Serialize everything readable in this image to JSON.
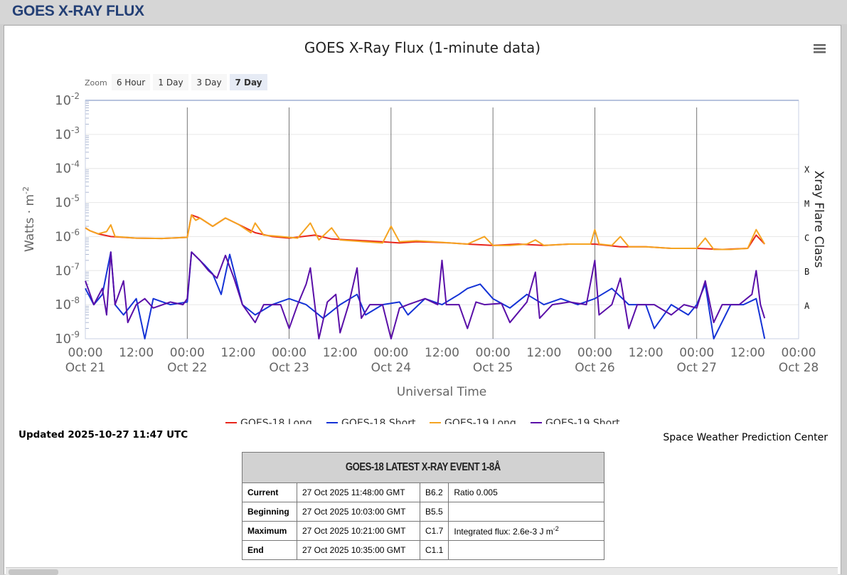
{
  "header": {
    "title": "GOES X-RAY FLUX"
  },
  "chart_data": {
    "type": "line",
    "title": "GOES X-Ray Flux (1-minute data)",
    "xlabel": "Universal Time",
    "ylabel": "Watts · m",
    "ylabel_sup": "-2",
    "right_axis_label": "Xray Flare Class",
    "y_scale": "log",
    "ylim": [
      1e-09,
      0.01
    ],
    "y_ticks": [
      {
        "base": "10",
        "exp": "-2"
      },
      {
        "base": "10",
        "exp": "-3"
      },
      {
        "base": "10",
        "exp": "-4"
      },
      {
        "base": "10",
        "exp": "-5"
      },
      {
        "base": "10",
        "exp": "-6"
      },
      {
        "base": "10",
        "exp": "-7"
      },
      {
        "base": "10",
        "exp": "-8"
      },
      {
        "base": "10",
        "exp": "-9"
      }
    ],
    "x_range_hours": [
      0,
      168
    ],
    "x_ticks": [
      {
        "time": "00:00",
        "date": "Oct 21"
      },
      {
        "time": "12:00",
        "date": ""
      },
      {
        "time": "00:00",
        "date": "Oct 22"
      },
      {
        "time": "12:00",
        "date": ""
      },
      {
        "time": "00:00",
        "date": "Oct 23"
      },
      {
        "time": "12:00",
        "date": ""
      },
      {
        "time": "00:00",
        "date": "Oct 24"
      },
      {
        "time": "12:00",
        "date": ""
      },
      {
        "time": "00:00",
        "date": "Oct 25"
      },
      {
        "time": "12:00",
        "date": ""
      },
      {
        "time": "00:00",
        "date": "Oct 26"
      },
      {
        "time": "12:00",
        "date": ""
      },
      {
        "time": "00:00",
        "date": "Oct 27"
      },
      {
        "time": "12:00",
        "date": ""
      },
      {
        "time": "00:00",
        "date": "Oct 28"
      }
    ],
    "flare_classes": [
      {
        "label": "X",
        "level": 0.0001
      },
      {
        "label": "M",
        "level": 1e-05
      },
      {
        "label": "C",
        "level": 1e-06
      },
      {
        "label": "B",
        "level": 1e-07
      },
      {
        "label": "A",
        "level": 1e-08
      }
    ],
    "zoom": {
      "label": "Zoom",
      "options": [
        "6 Hour",
        "1 Day",
        "3 Day",
        "7 Day"
      ],
      "selected": "7 Day"
    },
    "grid": true,
    "legend_position": "bottom",
    "series": [
      {
        "name": "GOES-18 Long",
        "color": "#e8261c",
        "points": [
          [
            0,
            1.8e-06
          ],
          [
            1,
            1.5e-06
          ],
          [
            3,
            1.2e-06
          ],
          [
            6,
            1e-06
          ],
          [
            12,
            9e-07
          ],
          [
            18,
            8.8e-07
          ],
          [
            24,
            9.5e-07
          ],
          [
            25,
            4.3e-06
          ],
          [
            27,
            3.5e-06
          ],
          [
            30,
            2e-06
          ],
          [
            33,
            3.5e-06
          ],
          [
            36,
            2.3e-06
          ],
          [
            40,
            1.3e-06
          ],
          [
            44,
            1e-06
          ],
          [
            48,
            9e-07
          ],
          [
            54,
            1.1e-06
          ],
          [
            58,
            8.5e-07
          ],
          [
            62,
            8e-07
          ],
          [
            66,
            7.5e-07
          ],
          [
            70,
            7e-07
          ],
          [
            74,
            6.5e-07
          ],
          [
            78,
            7e-07
          ],
          [
            82,
            6.8e-07
          ],
          [
            86,
            6.5e-07
          ],
          [
            90,
            6e-07
          ],
          [
            96,
            5.5e-07
          ],
          [
            102,
            6e-07
          ],
          [
            108,
            5.5e-07
          ],
          [
            114,
            6e-07
          ],
          [
            120,
            6e-07
          ],
          [
            126,
            5e-07
          ],
          [
            132,
            5e-07
          ],
          [
            138,
            4.5e-07
          ],
          [
            144,
            4.5e-07
          ],
          [
            150,
            4.2e-07
          ],
          [
            156,
            4.5e-07
          ],
          [
            158,
            1.1e-06
          ],
          [
            160,
            6e-07
          ]
        ]
      },
      {
        "name": "GOES-18 Short",
        "color": "#1433d6",
        "points": [
          [
            0,
            3e-08
          ],
          [
            2,
            1e-08
          ],
          [
            4,
            2e-08
          ],
          [
            6,
            3.5e-07
          ],
          [
            7,
            1e-08
          ],
          [
            9,
            5e-09
          ],
          [
            12,
            1.5e-08
          ],
          [
            14,
            1e-09
          ],
          [
            16,
            1.5e-08
          ],
          [
            20,
            1e-08
          ],
          [
            24,
            1.2e-08
          ],
          [
            25,
            3.5e-07
          ],
          [
            28,
            1.5e-07
          ],
          [
            30,
            8e-08
          ],
          [
            32,
            2e-08
          ],
          [
            34,
            3e-07
          ],
          [
            37,
            1e-08
          ],
          [
            40,
            5e-09
          ],
          [
            44,
            1e-08
          ],
          [
            48,
            1.5e-08
          ],
          [
            52,
            1e-08
          ],
          [
            56,
            4e-09
          ],
          [
            60,
            1e-08
          ],
          [
            64,
            2e-08
          ],
          [
            66,
            5e-09
          ],
          [
            70,
            1e-08
          ],
          [
            74,
            1.2e-08
          ],
          [
            76,
            5e-09
          ],
          [
            80,
            1.5e-08
          ],
          [
            84,
            1e-08
          ],
          [
            88,
            2e-08
          ],
          [
            90,
            3e-08
          ],
          [
            93,
            4e-08
          ],
          [
            96,
            1.5e-08
          ],
          [
            100,
            8e-09
          ],
          [
            104,
            2e-08
          ],
          [
            108,
            1e-08
          ],
          [
            112,
            1.5e-08
          ],
          [
            116,
            1e-08
          ],
          [
            120,
            1.5e-08
          ],
          [
            124,
            3e-08
          ],
          [
            128,
            1e-08
          ],
          [
            132,
            1e-08
          ],
          [
            134,
            2e-09
          ],
          [
            138,
            1e-08
          ],
          [
            142,
            5e-09
          ],
          [
            144,
            1e-08
          ],
          [
            146,
            4e-08
          ],
          [
            148,
            1e-09
          ],
          [
            152,
            1e-08
          ],
          [
            155,
            1e-08
          ],
          [
            158,
            1.5e-08
          ],
          [
            160,
            1e-09
          ]
        ]
      },
      {
        "name": "GOES-19 Long",
        "color": "#f5a422",
        "points": [
          [
            0,
            1.8e-06
          ],
          [
            1,
            1.5e-06
          ],
          [
            3,
            1.2e-06
          ],
          [
            5,
            1.4e-06
          ],
          [
            6,
            2.2e-06
          ],
          [
            7,
            1e-06
          ],
          [
            12,
            9e-07
          ],
          [
            18,
            8.8e-07
          ],
          [
            24,
            9.5e-07
          ],
          [
            25,
            4.3e-06
          ],
          [
            26,
            3e-06
          ],
          [
            27,
            3.5e-06
          ],
          [
            30,
            2e-06
          ],
          [
            33,
            3.5e-06
          ],
          [
            36,
            2.3e-06
          ],
          [
            39,
            1.3e-06
          ],
          [
            40,
            2.5e-06
          ],
          [
            42,
            1.1e-06
          ],
          [
            46,
            1e-06
          ],
          [
            50,
            9e-07
          ],
          [
            53,
            2.5e-06
          ],
          [
            55,
            8e-07
          ],
          [
            58,
            1.8e-06
          ],
          [
            60,
            8e-07
          ],
          [
            66,
            7e-07
          ],
          [
            70,
            6.5e-07
          ],
          [
            72,
            2e-06
          ],
          [
            74,
            7e-07
          ],
          [
            78,
            7.5e-07
          ],
          [
            82,
            7e-07
          ],
          [
            86,
            6.5e-07
          ],
          [
            90,
            6e-07
          ],
          [
            94,
            1e-06
          ],
          [
            96,
            5.5e-07
          ],
          [
            100,
            5.5e-07
          ],
          [
            104,
            6e-07
          ],
          [
            106,
            8e-07
          ],
          [
            108,
            5.5e-07
          ],
          [
            114,
            6e-07
          ],
          [
            119,
            6e-07
          ],
          [
            120,
            1.6e-06
          ],
          [
            121,
            6e-07
          ],
          [
            124,
            5.5e-07
          ],
          [
            126,
            1e-06
          ],
          [
            128,
            5e-07
          ],
          [
            132,
            5e-07
          ],
          [
            138,
            4.5e-07
          ],
          [
            144,
            4.5e-07
          ],
          [
            146,
            9e-07
          ],
          [
            148,
            4.2e-07
          ],
          [
            152,
            4.2e-07
          ],
          [
            156,
            4.5e-07
          ],
          [
            158,
            1.6e-06
          ],
          [
            160,
            6e-07
          ]
        ]
      },
      {
        "name": "GOES-19 Short",
        "color": "#5a0fa8",
        "points": [
          [
            0,
            5e-08
          ],
          [
            2,
            1e-08
          ],
          [
            4,
            3e-08
          ],
          [
            5,
            5e-09
          ],
          [
            6,
            3.5e-07
          ],
          [
            7,
            1e-08
          ],
          [
            9,
            5e-08
          ],
          [
            10,
            3e-09
          ],
          [
            12,
            1e-08
          ],
          [
            14,
            1.5e-08
          ],
          [
            16,
            8e-09
          ],
          [
            20,
            1.2e-08
          ],
          [
            23,
            1e-08
          ],
          [
            24,
            1.5e-08
          ],
          [
            25,
            3.5e-07
          ],
          [
            27,
            2e-07
          ],
          [
            29,
            1e-07
          ],
          [
            31,
            6e-08
          ],
          [
            33,
            2.8e-07
          ],
          [
            35,
            6e-08
          ],
          [
            37,
            1e-08
          ],
          [
            40,
            3e-09
          ],
          [
            42,
            1e-08
          ],
          [
            46,
            1e-08
          ],
          [
            48,
            2e-09
          ],
          [
            50,
            1e-08
          ],
          [
            52,
            4e-08
          ],
          [
            53,
            1.2e-07
          ],
          [
            55,
            1e-09
          ],
          [
            57,
            1.2e-08
          ],
          [
            59,
            2e-08
          ],
          [
            60,
            1.5e-09
          ],
          [
            62,
            1e-08
          ],
          [
            64,
            1.2e-07
          ],
          [
            65,
            4e-09
          ],
          [
            67,
            1e-08
          ],
          [
            70,
            1e-08
          ],
          [
            72,
            1e-09
          ],
          [
            74,
            8e-09
          ],
          [
            76,
            1e-08
          ],
          [
            80,
            1.5e-08
          ],
          [
            83,
            1e-08
          ],
          [
            84,
            2e-07
          ],
          [
            85,
            1e-08
          ],
          [
            88,
            1e-08
          ],
          [
            90,
            2e-09
          ],
          [
            92,
            1.2e-08
          ],
          [
            94,
            1e-08
          ],
          [
            98,
            1.1e-08
          ],
          [
            100,
            3e-09
          ],
          [
            104,
            1.2e-08
          ],
          [
            106,
            9e-08
          ],
          [
            107,
            4e-09
          ],
          [
            110,
            1e-08
          ],
          [
            114,
            1.2e-08
          ],
          [
            118,
            1e-08
          ],
          [
            120,
            2e-07
          ],
          [
            121,
            5e-09
          ],
          [
            124,
            1e-08
          ],
          [
            126,
            6e-08
          ],
          [
            128,
            2e-09
          ],
          [
            130,
            1e-08
          ],
          [
            134,
            1e-08
          ],
          [
            138,
            5e-09
          ],
          [
            141,
            1e-08
          ],
          [
            144,
            8e-09
          ],
          [
            146,
            5e-08
          ],
          [
            148,
            3e-09
          ],
          [
            150,
            1e-08
          ],
          [
            154,
            1e-08
          ],
          [
            157,
            2e-08
          ],
          [
            158,
            1e-07
          ],
          [
            159,
            1e-08
          ],
          [
            160,
            4e-09
          ]
        ]
      }
    ]
  },
  "updated": "Updated 2025-10-27 11:47 UTC",
  "credit": "Space Weather Prediction Center",
  "event_table": {
    "title": "GOES-18 LATEST X-RAY EVENT 1-8Å",
    "rows": [
      {
        "label": "Current",
        "time": "27 Oct 2025 11:48:00 GMT",
        "cls": "B6.2",
        "extra": "Ratio 0.005",
        "extra_sup": ""
      },
      {
        "label": "Beginning",
        "time": "27 Oct 2025 10:03:00 GMT",
        "cls": "B5.5",
        "extra": "",
        "extra_sup": ""
      },
      {
        "label": "Maximum",
        "time": "27 Oct 2025 10:21:00 GMT",
        "cls": "C1.7",
        "extra": "Integrated flux: 2.6e-3 J m",
        "extra_sup": "-2"
      },
      {
        "label": "End",
        "time": "27 Oct 2025 10:35:00 GMT",
        "cls": "C1.1",
        "extra": "",
        "extra_sup": ""
      }
    ]
  }
}
